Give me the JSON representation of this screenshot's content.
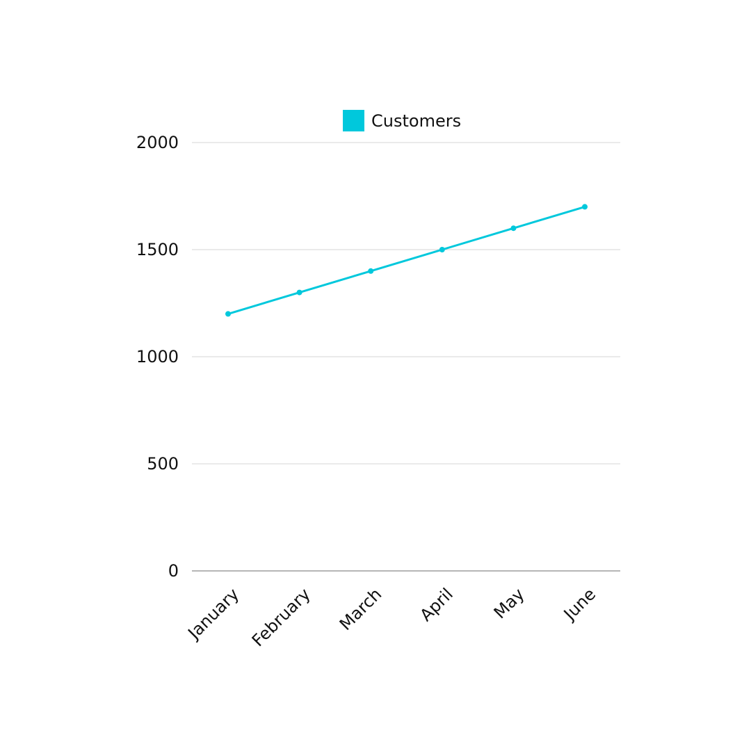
{
  "chart_data": {
    "type": "line",
    "categories": [
      "January",
      "February",
      "March",
      "April",
      "May",
      "June"
    ],
    "series": [
      {
        "name": "Customers",
        "values": [
          1200,
          1300,
          1400,
          1500,
          1600,
          1700
        ],
        "color": "#00c8dc"
      }
    ],
    "y_ticks": [
      0,
      500,
      1000,
      1500,
      2000
    ],
    "ylim": [
      0,
      2000
    ],
    "grid": true,
    "legend_position": "top-center",
    "gridline_color": "#d4d4d4",
    "axis_color": "#9e9e9e"
  }
}
